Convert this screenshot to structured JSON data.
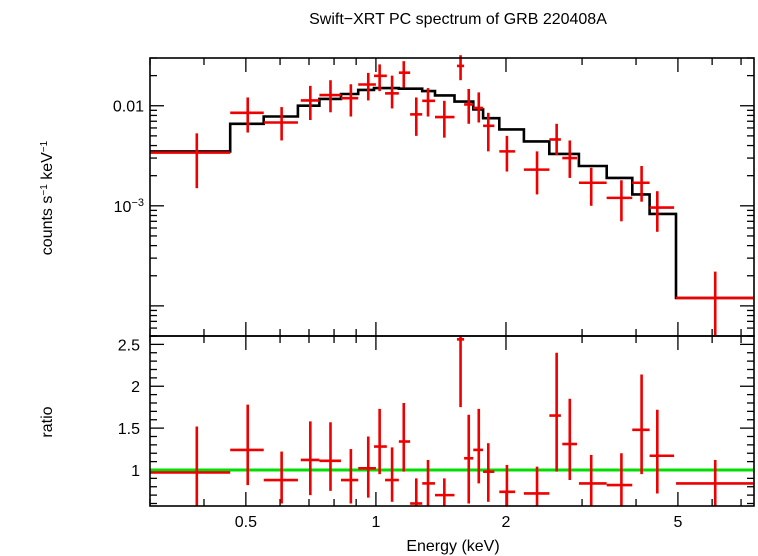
{
  "chart_data": [
    {
      "type": "scatter",
      "panel": "spectrum",
      "title": "Swift−XRT PC spectrum of GRB 220408A",
      "ylabel_base": "counts s",
      "ylabel_exp1": "−1",
      "ylabel_mid": " keV",
      "ylabel_exp2": "−1",
      "y_scale": "log",
      "x_scale": "log",
      "xlim": [
        0.3,
        7.5
      ],
      "ylim": [
        5e-05,
        0.03
      ],
      "y_ticks": [
        {
          "value": 0.01,
          "label": "0.01",
          "is_power": false
        },
        {
          "value": 0.001,
          "label": "10",
          "exp": "−3",
          "is_power": true
        }
      ],
      "series": [
        {
          "role": "data",
          "color": "#ee0000",
          "points": [
            {
              "x": 0.385,
              "xlo": 0.3,
              "xhi": 0.46,
              "y": 0.0034,
              "ylo": 0.0015,
              "yhi": 0.0053
            },
            {
              "x": 0.505,
              "xlo": 0.46,
              "xhi": 0.55,
              "y": 0.0085,
              "ylo": 0.0054,
              "yhi": 0.0121
            },
            {
              "x": 0.605,
              "xlo": 0.55,
              "xhi": 0.66,
              "y": 0.0068,
              "ylo": 0.0045,
              "yhi": 0.0097
            },
            {
              "x": 0.705,
              "xlo": 0.67,
              "xhi": 0.74,
              "y": 0.0113,
              "ylo": 0.0072,
              "yhi": 0.0158
            },
            {
              "x": 0.785,
              "xlo": 0.74,
              "xhi": 0.83,
              "y": 0.0128,
              "ylo": 0.0086,
              "yhi": 0.018
            },
            {
              "x": 0.875,
              "xlo": 0.83,
              "xhi": 0.91,
              "y": 0.0119,
              "ylo": 0.0078,
              "yhi": 0.0164
            },
            {
              "x": 0.96,
              "xlo": 0.91,
              "xhi": 1.0,
              "y": 0.0163,
              "ylo": 0.0113,
              "yhi": 0.0213
            },
            {
              "x": 1.02,
              "xlo": 0.99,
              "xhi": 1.06,
              "y": 0.0199,
              "ylo": 0.014,
              "yhi": 0.0259
            },
            {
              "x": 1.09,
              "xlo": 1.05,
              "xhi": 1.13,
              "y": 0.0133,
              "ylo": 0.0094,
              "yhi": 0.02
            },
            {
              "x": 1.16,
              "xlo": 1.13,
              "xhi": 1.2,
              "y": 0.0214,
              "ylo": 0.0152,
              "yhi": 0.0279
            },
            {
              "x": 1.24,
              "xlo": 1.2,
              "xhi": 1.28,
              "y": 0.0082,
              "ylo": 0.005,
              "yhi": 0.0121
            },
            {
              "x": 1.32,
              "xlo": 1.28,
              "xhi": 1.37,
              "y": 0.0112,
              "ylo": 0.0078,
              "yhi": 0.015
            },
            {
              "x": 1.44,
              "xlo": 1.37,
              "xhi": 1.52,
              "y": 0.0077,
              "ylo": 0.0048,
              "yhi": 0.0112
            },
            {
              "x": 1.57,
              "xlo": 1.54,
              "xhi": 1.6,
              "y": 0.025,
              "ylo": 0.018,
              "yhi": 0.032
            },
            {
              "x": 1.64,
              "xlo": 1.6,
              "xhi": 1.68,
              "y": 0.0103,
              "ylo": 0.0066,
              "yhi": 0.0147
            },
            {
              "x": 1.73,
              "xlo": 1.68,
              "xhi": 1.77,
              "y": 0.0095,
              "ylo": 0.0068,
              "yhi": 0.0136
            },
            {
              "x": 1.82,
              "xlo": 1.77,
              "xhi": 1.88,
              "y": 0.0063,
              "ylo": 0.0035,
              "yhi": 0.0085
            },
            {
              "x": 2.01,
              "xlo": 1.93,
              "xhi": 2.1,
              "y": 0.0035,
              "ylo": 0.0022,
              "yhi": 0.005
            },
            {
              "x": 2.36,
              "xlo": 2.2,
              "xhi": 2.52,
              "y": 0.0023,
              "ylo": 0.0013,
              "yhi": 0.0035
            },
            {
              "x": 2.62,
              "xlo": 2.52,
              "xhi": 2.68,
              "y": 0.0046,
              "ylo": 0.0032,
              "yhi": 0.0066
            },
            {
              "x": 2.81,
              "xlo": 2.7,
              "xhi": 2.92,
              "y": 0.003,
              "ylo": 0.0019,
              "yhi": 0.0045
            },
            {
              "x": 3.15,
              "xlo": 2.95,
              "xhi": 3.42,
              "y": 0.0017,
              "ylo": 0.001,
              "yhi": 0.0024
            },
            {
              "x": 3.7,
              "xlo": 3.42,
              "xhi": 3.92,
              "y": 0.0012,
              "ylo": 0.0007,
              "yhi": 0.0018
            },
            {
              "x": 4.12,
              "xlo": 3.92,
              "xhi": 4.3,
              "y": 0.0017,
              "ylo": 0.0011,
              "yhi": 0.0025
            },
            {
              "x": 4.48,
              "xlo": 4.3,
              "xhi": 4.9,
              "y": 0.00096,
              "ylo": 0.00055,
              "yhi": 0.0014
            },
            {
              "x": 6.1,
              "xlo": 4.95,
              "xhi": 7.5,
              "y": 0.00012,
              "ylo": 5e-05,
              "yhi": 0.00022
            }
          ]
        },
        {
          "role": "model",
          "color": "#000000",
          "steps": [
            {
              "x0": 0.3,
              "x1": 0.46,
              "y": 0.0035
            },
            {
              "x0": 0.46,
              "x1": 0.55,
              "y": 0.0066
            },
            {
              "x0": 0.55,
              "x1": 0.66,
              "y": 0.0078
            },
            {
              "x0": 0.66,
              "x1": 0.74,
              "y": 0.01
            },
            {
              "x0": 0.74,
              "x1": 0.83,
              "y": 0.0117
            },
            {
              "x0": 0.83,
              "x1": 0.91,
              "y": 0.0131
            },
            {
              "x0": 0.91,
              "x1": 0.99,
              "y": 0.0144
            },
            {
              "x0": 0.99,
              "x1": 1.13,
              "y": 0.015
            },
            {
              "x0": 1.13,
              "x1": 1.28,
              "y": 0.0148
            },
            {
              "x0": 1.28,
              "x1": 1.37,
              "y": 0.014
            },
            {
              "x0": 1.37,
              "x1": 1.52,
              "y": 0.0127
            },
            {
              "x0": 1.52,
              "x1": 1.68,
              "y": 0.011
            },
            {
              "x0": 1.68,
              "x1": 1.77,
              "y": 0.0092
            },
            {
              "x0": 1.77,
              "x1": 1.93,
              "y": 0.0075
            },
            {
              "x0": 1.93,
              "x1": 2.2,
              "y": 0.0058
            },
            {
              "x0": 2.2,
              "x1": 2.52,
              "y": 0.0044
            },
            {
              "x0": 2.52,
              "x1": 2.95,
              "y": 0.0033
            },
            {
              "x0": 2.95,
              "x1": 3.42,
              "y": 0.0025
            },
            {
              "x0": 3.42,
              "x1": 3.92,
              "y": 0.0019
            },
            {
              "x0": 3.92,
              "x1": 4.3,
              "y": 0.0013
            },
            {
              "x0": 4.3,
              "x1": 4.95,
              "y": 0.00083
            },
            {
              "x0": 4.95,
              "x1": 7.5,
              "y": 0.00012
            }
          ]
        }
      ]
    },
    {
      "type": "scatter",
      "panel": "ratio",
      "ylabel": "ratio",
      "xlabel": "Energy (keV)",
      "x_scale": "log",
      "xlim": [
        0.3,
        7.5
      ],
      "ylim": [
        0.57,
        2.6
      ],
      "y_ticks": [
        {
          "value": 1,
          "label": "1"
        },
        {
          "value": 1.5,
          "label": "1.5"
        },
        {
          "value": 2,
          "label": "2"
        },
        {
          "value": 2.5,
          "label": "2.5"
        }
      ],
      "x_ticks": [
        {
          "value": 0.5,
          "label": "0.5"
        },
        {
          "value": 1,
          "label": "1"
        },
        {
          "value": 2,
          "label": "2"
        },
        {
          "value": 5,
          "label": "5"
        }
      ],
      "reference_line": {
        "y": 1,
        "color": "#00dd00"
      },
      "series": [
        {
          "role": "ratio",
          "color": "#ee0000",
          "points": [
            {
              "x": 0.385,
              "xlo": 0.3,
              "xhi": 0.46,
              "y": 0.97,
              "ylo": 0.57,
              "yhi": 1.52
            },
            {
              "x": 0.505,
              "xlo": 0.46,
              "xhi": 0.55,
              "y": 1.24,
              "ylo": 0.82,
              "yhi": 1.78
            },
            {
              "x": 0.605,
              "xlo": 0.55,
              "xhi": 0.66,
              "y": 0.88,
              "ylo": 0.6,
              "yhi": 1.22
            },
            {
              "x": 0.705,
              "xlo": 0.67,
              "xhi": 0.74,
              "y": 1.12,
              "ylo": 0.7,
              "yhi": 1.58
            },
            {
              "x": 0.785,
              "xlo": 0.74,
              "xhi": 0.83,
              "y": 1.11,
              "ylo": 0.75,
              "yhi": 1.57
            },
            {
              "x": 0.875,
              "xlo": 0.83,
              "xhi": 0.91,
              "y": 0.88,
              "ylo": 0.6,
              "yhi": 1.25
            },
            {
              "x": 0.96,
              "xlo": 0.91,
              "xhi": 1.0,
              "y": 1.02,
              "ylo": 0.67,
              "yhi": 1.4
            },
            {
              "x": 1.02,
              "xlo": 0.99,
              "xhi": 1.06,
              "y": 1.28,
              "ylo": 0.95,
              "yhi": 1.73
            },
            {
              "x": 1.09,
              "xlo": 1.05,
              "xhi": 1.13,
              "y": 0.88,
              "ylo": 0.62,
              "yhi": 1.27
            },
            {
              "x": 1.16,
              "xlo": 1.13,
              "xhi": 1.2,
              "y": 1.34,
              "ylo": 0.98,
              "yhi": 1.8
            },
            {
              "x": 1.24,
              "xlo": 1.2,
              "xhi": 1.28,
              "y": 0.6,
              "ylo": 0.57,
              "yhi": 0.9
            },
            {
              "x": 1.32,
              "xlo": 1.28,
              "xhi": 1.37,
              "y": 0.84,
              "ylo": 0.57,
              "yhi": 1.12
            },
            {
              "x": 1.44,
              "xlo": 1.37,
              "xhi": 1.52,
              "y": 0.7,
              "ylo": 0.57,
              "yhi": 0.9
            },
            {
              "x": 1.57,
              "xlo": 1.54,
              "xhi": 1.6,
              "y": 2.56,
              "ylo": 1.75,
              "yhi": 2.6
            },
            {
              "x": 1.64,
              "xlo": 1.6,
              "xhi": 1.68,
              "y": 1.14,
              "ylo": 0.6,
              "yhi": 1.66
            },
            {
              "x": 1.73,
              "xlo": 1.68,
              "xhi": 1.77,
              "y": 1.24,
              "ylo": 0.84,
              "yhi": 1.73
            },
            {
              "x": 1.82,
              "xlo": 1.77,
              "xhi": 1.88,
              "y": 0.98,
              "ylo": 0.62,
              "yhi": 1.32
            },
            {
              "x": 2.01,
              "xlo": 1.93,
              "xhi": 2.1,
              "y": 0.74,
              "ylo": 0.57,
              "yhi": 1.06
            },
            {
              "x": 2.36,
              "xlo": 2.2,
              "xhi": 2.52,
              "y": 0.72,
              "ylo": 0.57,
              "yhi": 1.04
            },
            {
              "x": 2.62,
              "xlo": 2.52,
              "xhi": 2.68,
              "y": 1.65,
              "ylo": 0.98,
              "yhi": 2.4
            },
            {
              "x": 2.81,
              "xlo": 2.7,
              "xhi": 2.92,
              "y": 1.31,
              "ylo": 0.88,
              "yhi": 1.85
            },
            {
              "x": 3.15,
              "xlo": 2.95,
              "xhi": 3.42,
              "y": 0.84,
              "ylo": 0.57,
              "yhi": 1.18
            },
            {
              "x": 3.7,
              "xlo": 3.42,
              "xhi": 3.92,
              "y": 0.82,
              "ylo": 0.57,
              "yhi": 1.2
            },
            {
              "x": 4.12,
              "xlo": 3.92,
              "xhi": 4.3,
              "y": 1.48,
              "ylo": 0.95,
              "yhi": 2.14
            },
            {
              "x": 4.48,
              "xlo": 4.3,
              "xhi": 4.9,
              "y": 1.17,
              "ylo": 0.72,
              "yhi": 1.72
            },
            {
              "x": 6.1,
              "xlo": 4.95,
              "xhi": 7.5,
              "y": 0.84,
              "ylo": 0.57,
              "yhi": 1.12
            }
          ]
        }
      ]
    }
  ]
}
